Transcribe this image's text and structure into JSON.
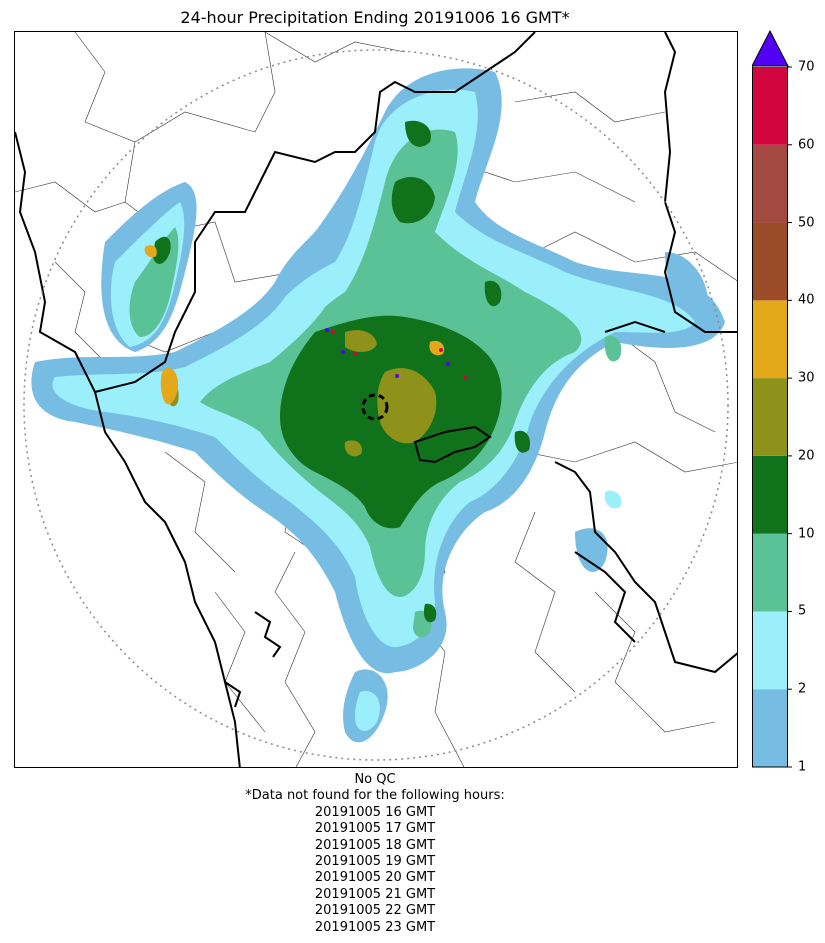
{
  "title": "24-hour Precipitation Ending 20191006 16 GMT*",
  "colorbar": {
    "levels": [
      {
        "value": "1",
        "color": "#77bde3"
      },
      {
        "value": "2",
        "color": "#9aeffa"
      },
      {
        "value": "5",
        "color": "#5bc297"
      },
      {
        "value": "10",
        "color": "#10731b"
      },
      {
        "value": "20",
        "color": "#8e921a"
      },
      {
        "value": "30",
        "color": "#e4a81b"
      },
      {
        "value": "40",
        "color": "#9b4b27"
      },
      {
        "value": "50",
        "color": "#a24a40"
      },
      {
        "value": "60",
        "color": "#d3053f"
      },
      {
        "value": "70",
        "color": ""
      }
    ],
    "extend_color": "#5200f7"
  },
  "notes": {
    "qc": "No QC",
    "missing_header": "*Data not found for the following hours:",
    "missing_hours": [
      "20191005 16 GMT",
      "20191005 17 GMT",
      "20191005 18 GMT",
      "20191005 19 GMT",
      "20191005 20 GMT",
      "20191005 21 GMT",
      "20191005 22 GMT",
      "20191005 23 GMT"
    ]
  }
}
